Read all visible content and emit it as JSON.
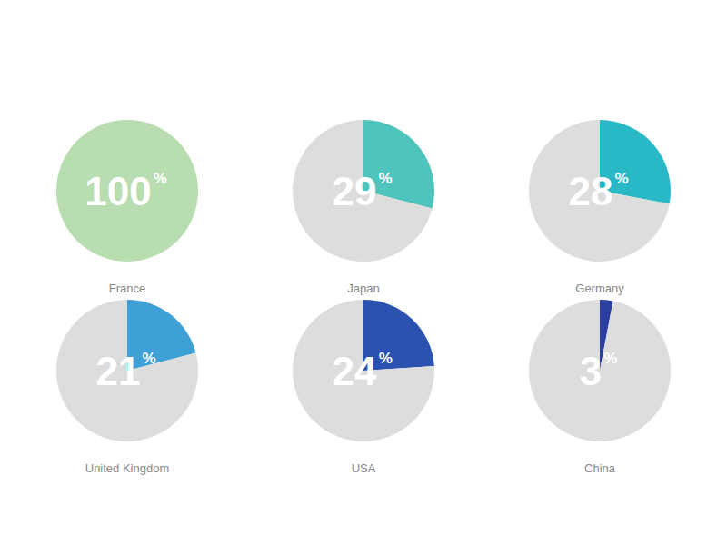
{
  "chart_data": [
    {
      "type": "pie",
      "title": "France",
      "values": [
        100
      ],
      "colors": [
        "#b8ddb0"
      ],
      "data_labels": true,
      "value_labels": [
        "100"
      ],
      "annotations": [
        "%"
      ]
    },
    {
      "type": "pie",
      "title": "Japan",
      "values": [
        29,
        71
      ],
      "colors": [
        "#4ec4bc",
        "#dddddd"
      ],
      "data_labels": true,
      "value_labels": [
        "29",
        null
      ],
      "annotations": [
        "%"
      ]
    },
    {
      "type": "pie",
      "title": "Germany",
      "values": [
        28,
        72
      ],
      "colors": [
        "#29b8c5",
        "#dddddd"
      ],
      "data_labels": true,
      "value_labels": [
        "28",
        null
      ],
      "annotations": [
        "%"
      ]
    },
    {
      "type": "pie",
      "title": "United Kingdom",
      "values": [
        21,
        79
      ],
      "colors": [
        "#3fa0d5",
        "#dddddd"
      ],
      "data_labels": true,
      "value_labels": [
        "21",
        null
      ],
      "annotations": [
        "%"
      ]
    },
    {
      "type": "pie",
      "title": "USA",
      "values": [
        24,
        76
      ],
      "colors": [
        "#2b52b0",
        "#dddddd"
      ],
      "data_labels": true,
      "value_labels": [
        "24",
        null
      ],
      "annotations": [
        "%"
      ]
    },
    {
      "type": "pie",
      "title": "China",
      "values": [
        3,
        97
      ],
      "colors": [
        "#2a3fa0",
        "#dddddd"
      ],
      "data_labels": true,
      "value_labels": [
        "3",
        null
      ],
      "annotations": [
        "%"
      ]
    }
  ]
}
